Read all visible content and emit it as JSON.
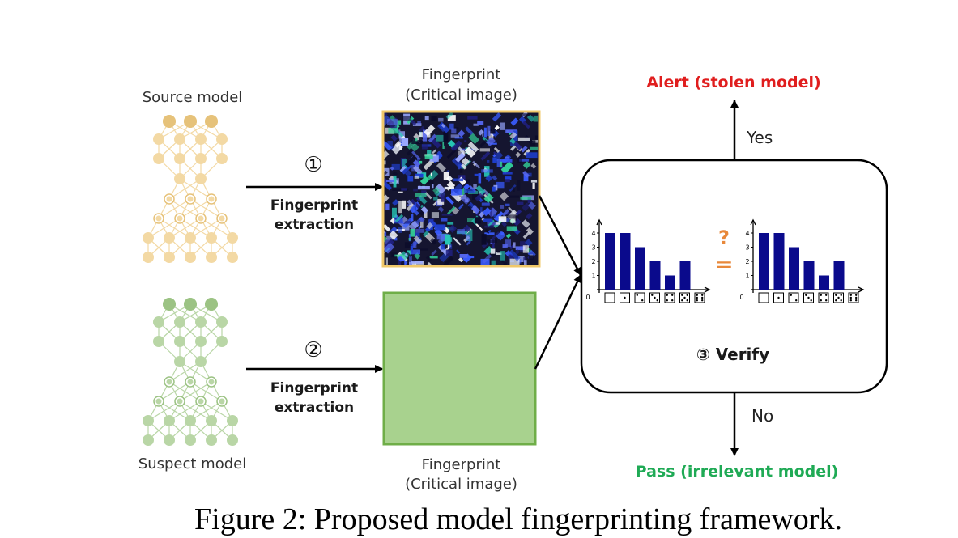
{
  "source": {
    "label": "Source model",
    "color": "#f3d9a4",
    "ring": "#e6c27a"
  },
  "suspect": {
    "label": "Suspect model",
    "color": "#b9d6a6",
    "ring": "#9cc384"
  },
  "fingerprint_top": {
    "line1": "Fingerprint",
    "line2": "(Critical image)"
  },
  "fingerprint_bottom": {
    "line1": "Fingerprint",
    "line2": "(Critical image)",
    "fill": "#a8d28e",
    "border": "#6fae48"
  },
  "step1": {
    "number": "①",
    "line1": "Fingerprint",
    "line2": "extraction"
  },
  "step2": {
    "number": "②",
    "line1": "Fingerprint",
    "line2": "extraction"
  },
  "verify": {
    "label": "③ Verify",
    "question_mark": "?",
    "equals": "=",
    "histograms": [
      {
        "values": [
          4,
          4,
          3,
          2,
          1,
          2
        ],
        "yticks": [
          "0",
          "1",
          "2",
          "3",
          "4"
        ]
      },
      {
        "values": [
          4,
          4,
          3,
          2,
          1,
          2
        ],
        "yticks": [
          "0",
          "1",
          "2",
          "3",
          "4"
        ]
      }
    ]
  },
  "decision": {
    "yes": "Yes",
    "no": "No",
    "alert": "Alert (stolen model)",
    "pass": "Pass (irrelevant model)"
  },
  "colors": {
    "bar": "#0a0a8c",
    "alert": "#e01e1e",
    "pass": "#1faa55",
    "orange": "#e8883a"
  },
  "caption": "Figure 2: Proposed model fingerprinting framework."
}
